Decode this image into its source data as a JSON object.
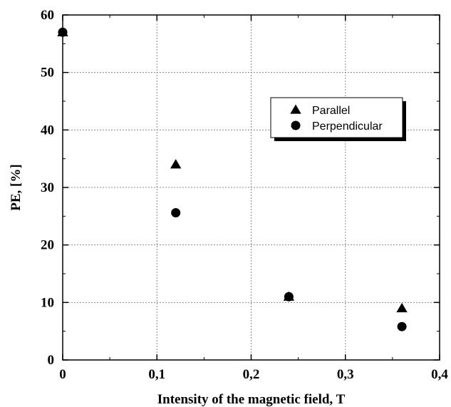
{
  "chart_data": {
    "type": "scatter",
    "xlabel": "Intensity of the magnetic field, T",
    "ylabel": "PE, [%]",
    "xlim": [
      0,
      0.4
    ],
    "ylim": [
      0,
      60
    ],
    "x_ticks": [
      "0",
      "0,1",
      "0,2",
      "0,3",
      "0,4"
    ],
    "y_ticks": [
      "0",
      "10",
      "20",
      "30",
      "40",
      "50",
      "60"
    ],
    "grid": true,
    "legend_position": "upper-right",
    "series": [
      {
        "name": "Parallel",
        "marker": "triangle",
        "points": [
          {
            "x": 0,
            "y": 57
          },
          {
            "x": 0.12,
            "y": 34
          },
          {
            "x": 0.24,
            "y": 11
          },
          {
            "x": 0.36,
            "y": 9
          }
        ]
      },
      {
        "name": "Perpendicular",
        "marker": "circle",
        "points": [
          {
            "x": 0,
            "y": 57
          },
          {
            "x": 0.12,
            "y": 25.6
          },
          {
            "x": 0.24,
            "y": 11
          },
          {
            "x": 0.36,
            "y": 5.8
          }
        ]
      }
    ],
    "colors": {
      "marker": "#000000",
      "grid": "#888888",
      "axis": "#000000"
    }
  }
}
